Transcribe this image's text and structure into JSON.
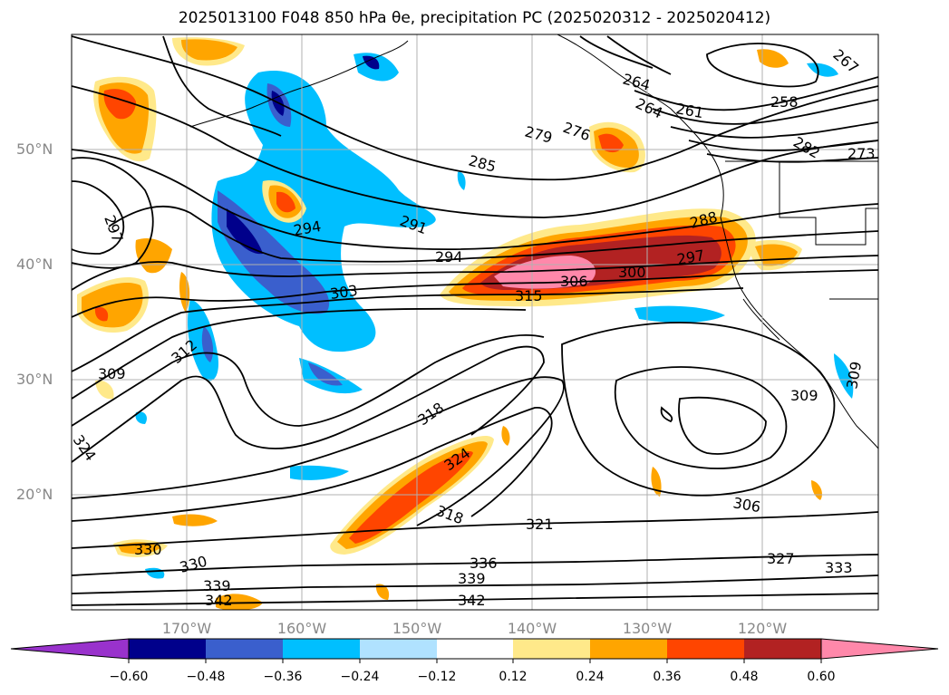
{
  "title": "2025013100 F048 850 hPa θe, precipitation PC (2025020312 - 2025020412)",
  "map": {
    "lat_ticks": [
      "50°N",
      "40°N",
      "30°N",
      "20°N"
    ],
    "lon_ticks": [
      "170°W",
      "160°W",
      "150°W",
      "140°W",
      "130°W",
      "120°W"
    ],
    "contour_labels": [
      "264",
      "264",
      "261",
      "258",
      "267",
      "273",
      "276",
      "279",
      "282",
      "285",
      "288",
      "291",
      "294",
      "294",
      "297",
      "297",
      "300",
      "303",
      "306",
      "306",
      "309",
      "309",
      "309",
      "312",
      "315",
      "318",
      "318",
      "321",
      "324",
      "324",
      "327",
      "330",
      "330",
      "333",
      "336",
      "339",
      "339",
      "342",
      "342"
    ]
  },
  "colorbar": {
    "colors": [
      "#9932cc",
      "#00008b",
      "#3a5fcd",
      "#00bfff",
      "#b0e2ff",
      "#ffffff",
      "#ffe98a",
      "#ffa500",
      "#ff4500",
      "#b22222",
      "#ff88aa"
    ],
    "extend_low_color": "#9932cc",
    "extend_high_color": "#ff88aa",
    "tick_labels": [
      "−0.60",
      "−0.48",
      "−0.36",
      "−0.24",
      "−0.12",
      "0.12",
      "0.24",
      "0.36",
      "0.48",
      "0.60"
    ]
  }
}
